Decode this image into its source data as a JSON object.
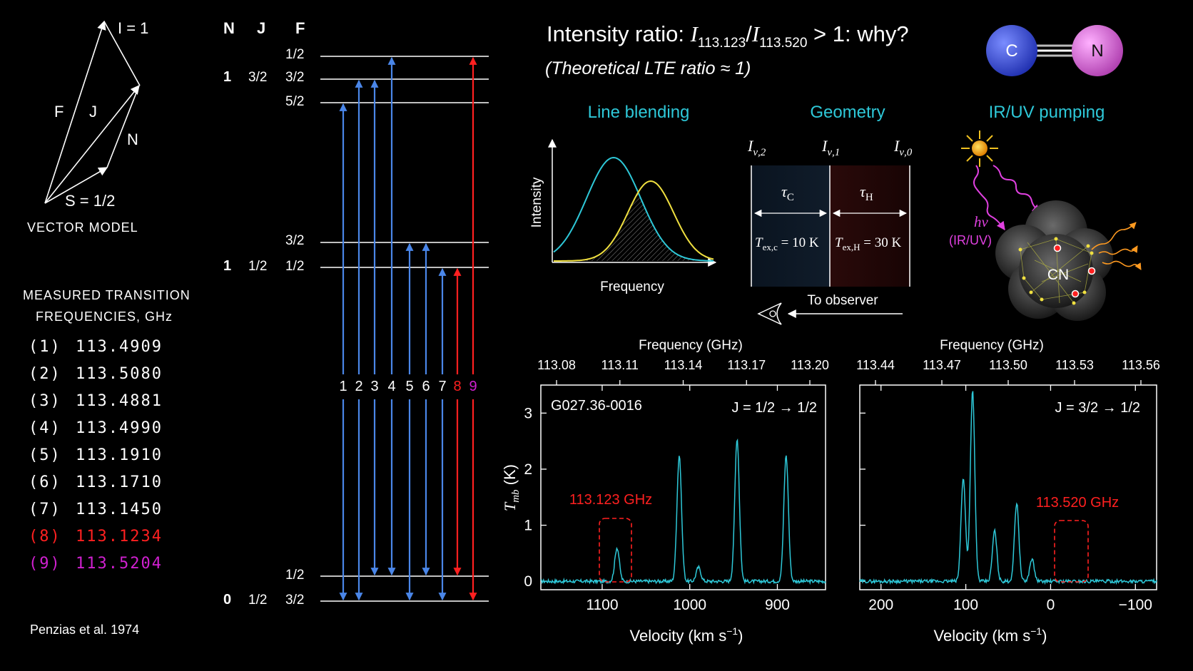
{
  "vector_model": {
    "label_I": "I = 1",
    "label_F": "F",
    "label_J": "J",
    "label_N": "N",
    "label_S": "S = 1/2",
    "caption": "VECTOR  MODEL"
  },
  "measured": {
    "title_line1": "MEASURED TRANSITION",
    "title_line2": "FREQUENCIES, GHz",
    "rows": [
      {
        "idx": "(1)",
        "freq": "113.4909",
        "color": "#ffffff"
      },
      {
        "idx": "(2)",
        "freq": "113.5080",
        "color": "#ffffff"
      },
      {
        "idx": "(3)",
        "freq": "113.4881",
        "color": "#ffffff"
      },
      {
        "idx": "(4)",
        "freq": "113.4990",
        "color": "#ffffff"
      },
      {
        "idx": "(5)",
        "freq": "113.1910",
        "color": "#ffffff"
      },
      {
        "idx": "(6)",
        "freq": "113.1710",
        "color": "#ffffff"
      },
      {
        "idx": "(7)",
        "freq": "113.1450",
        "color": "#ffffff"
      },
      {
        "idx": "(8)",
        "freq": "113.1234",
        "color": "#ff2020"
      },
      {
        "idx": "(9)",
        "freq": "113.5204",
        "color": "#d020d0"
      }
    ],
    "citation": "Penzias et al. 1974"
  },
  "levels": {
    "head_N": "N",
    "head_J": "J",
    "head_F": "F",
    "upper": {
      "N": "1",
      "J_a": "3/2",
      "J_b": "1/2",
      "F": [
        "1/2",
        "3/2",
        "5/2",
        "3/2",
        "1/2"
      ]
    },
    "lower": {
      "N": "0",
      "J": "1/2",
      "F": [
        "1/2",
        "3/2"
      ]
    },
    "transition_numbers": [
      "1",
      "2",
      "3",
      "4",
      "5",
      "6",
      "7",
      "8",
      "9"
    ],
    "blue": "#4a86e8",
    "red": "#ff2020",
    "magenta": "#d020d0"
  },
  "header": {
    "title_prefix": "Intensity ratio: ",
    "I": "I",
    "sub1": "113.123",
    "slash": "/",
    "sub2": "113.520",
    "title_suffix": " > 1: why?",
    "subtitle": "(Theoretical LTE ratio ≈ 1)",
    "mol_C": "C",
    "mol_N": "N"
  },
  "panels": {
    "blending": {
      "title": "Line blending",
      "ylabel": "Intensity",
      "xlabel": "Frequency"
    },
    "geometry": {
      "title": "Geometry",
      "I_label": "I",
      "I2_sub": "ν,2",
      "I1_sub": "ν,1",
      "I0_sub": "ν,0",
      "tau": "τ",
      "tauC_sub": "C",
      "tauH_sub": "H",
      "T": "T",
      "TexC_sub": "ex,c",
      "TexC_val": " = 10 K",
      "TexH_sub": "ex,H",
      "TexH_val": " = 30 K",
      "observer": "To observer"
    },
    "pumping": {
      "title": "IR/UV pumping",
      "hv": "hν",
      "band": "(IR/UV)",
      "molecule": "CN"
    },
    "accent": "#2ec8d8"
  },
  "spectra": {
    "left": {
      "top_title": "Frequency (GHz)",
      "top_ticks": [
        "113.08",
        "113.11",
        "113.14",
        "113.17",
        "113.20"
      ],
      "bottom_ticks": [
        "1100",
        "1000",
        "900"
      ],
      "xlabel": "Velocity (km s",
      "xlabel_sup": "−1",
      "xlabel_end": ")",
      "ylabel": "T",
      "ylabel_sub": "mb",
      "ylabel_unit": " (K)",
      "y_ticks": [
        "0",
        "1",
        "2",
        "3"
      ],
      "source": "G027.36-0016",
      "transition": "J = 1/2 → 1/2",
      "highlight": "113.123 GHz"
    },
    "right": {
      "top_title": "Frequency (GHz)",
      "top_ticks": [
        "113.44",
        "113.47",
        "113.50",
        "113.53",
        "113.56"
      ],
      "bottom_ticks": [
        "200",
        "100",
        "0",
        "−100"
      ],
      "xlabel": "Velocity (km s",
      "xlabel_sup": "−1",
      "xlabel_end": ")",
      "transition": "J = 3/2 → 1/2",
      "highlight": "113.520 GHz"
    },
    "line_color": "#2ec8d8",
    "highlight_color": "#ff2020"
  },
  "chart_data": [
    {
      "type": "line",
      "title": "",
      "xlabel": "Velocity (km s−1)",
      "ylabel": "Tmb (K)",
      "x_top_label": "Frequency (GHz)",
      "xlim": [
        1170,
        845
      ],
      "ylim": [
        -0.15,
        3.5
      ],
      "annotation": "G027.36-0016, J = 1/2 → 1/2",
      "peaks": [
        {
          "velocity": 1083,
          "peak_K": 0.6
        },
        {
          "velocity": 1012,
          "peak_K": 2.25
        },
        {
          "velocity": 990,
          "peak_K": 0.25
        },
        {
          "velocity": 946,
          "peak_K": 2.55
        },
        {
          "velocity": 890,
          "peak_K": 2.25
        }
      ]
    },
    {
      "type": "line",
      "title": "",
      "xlabel": "Velocity (km s−1)",
      "ylabel": "Tmb (K)",
      "x_top_label": "Frequency (GHz)",
      "xlim": [
        225,
        -125
      ],
      "ylim": [
        -0.15,
        3.5
      ],
      "annotation": "J = 3/2 → 1/2",
      "peaks": [
        {
          "velocity": 103,
          "peak_K": 1.85
        },
        {
          "velocity": 92,
          "peak_K": 3.4
        },
        {
          "velocity": 66,
          "peak_K": 0.9
        },
        {
          "velocity": 40,
          "peak_K": 1.4
        },
        {
          "velocity": 22,
          "peak_K": 0.4
        }
      ]
    }
  ]
}
